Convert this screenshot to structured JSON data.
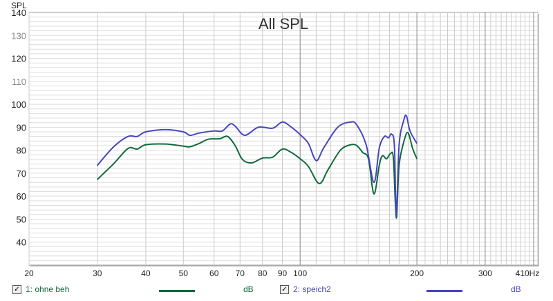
{
  "chart_data": {
    "type": "line",
    "title": "All SPL",
    "ylabel": "SPL",
    "xunit": "Hz",
    "xscale": "log",
    "xlim": [
      20,
      410
    ],
    "ylim": [
      30,
      140
    ],
    "grid": true,
    "xticks": [
      20,
      30,
      40,
      50,
      60,
      70,
      80,
      90,
      100,
      200,
      300,
      410
    ],
    "xtick_labels": [
      "20",
      "30",
      "40",
      "50",
      "60",
      "70",
      "80",
      "90",
      "100",
      "200",
      "300",
      "410Hz"
    ],
    "yticks": [
      40,
      50,
      60,
      70,
      80,
      90,
      100,
      110,
      120,
      130,
      140
    ],
    "legend_placement": "bottom",
    "series": [
      {
        "name": "1: ohne beh",
        "unit": "dB",
        "color": "#0f6a3a",
        "x": [
          30,
          33,
          36,
          38,
          40,
          45,
          50,
          52,
          55,
          58,
          62,
          65,
          68,
          71,
          75,
          80,
          85,
          90,
          95,
          100,
          105,
          112,
          118,
          127,
          135,
          140,
          145,
          150,
          155,
          160,
          163,
          167,
          171,
          174,
          177,
          180,
          186,
          190,
          195,
          200
        ],
        "y": [
          67.3,
          74,
          80.8,
          80.5,
          82.4,
          82.7,
          81.8,
          81.5,
          83,
          84.8,
          85,
          86,
          82,
          76,
          74.5,
          76.6,
          77,
          80.5,
          79,
          76.3,
          73,
          65.5,
          71.5,
          80,
          82.4,
          82,
          79,
          76.3,
          61,
          73.5,
          77.6,
          76.3,
          78.5,
          76.3,
          50.5,
          73.5,
          85,
          87.5,
          80.8,
          76.3
        ]
      },
      {
        "name": "2: speich2",
        "unit": "dB",
        "color": "#4646c0",
        "x": [
          30,
          33,
          36,
          38,
          40,
          45,
          50,
          52,
          55,
          60,
          63,
          66,
          68,
          72,
          78,
          85,
          90,
          95,
          100,
          105,
          110,
          115,
          125,
          135,
          140,
          148,
          155,
          160,
          165,
          169,
          172,
          175,
          177,
          180,
          185,
          188,
          192,
          200
        ],
        "y": [
          73.4,
          81.4,
          86,
          86,
          88,
          89,
          88,
          86.5,
          87.5,
          88.4,
          88.4,
          91.4,
          90.5,
          86.5,
          90,
          89.6,
          92.3,
          90,
          86.8,
          83,
          75.5,
          81,
          90,
          92.3,
          91,
          82.4,
          66,
          81,
          86,
          85.4,
          87,
          82,
          52,
          82.4,
          93,
          95,
          88.4,
          83
        ]
      }
    ]
  }
}
